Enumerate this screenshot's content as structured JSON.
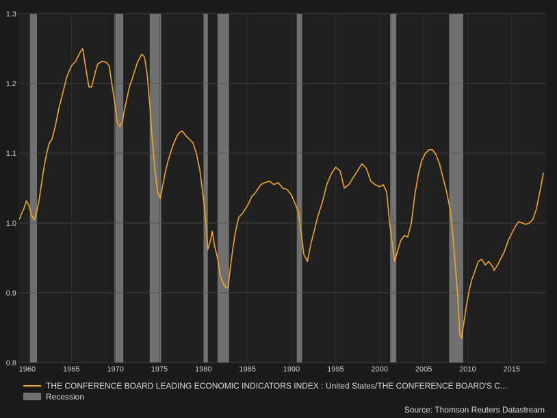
{
  "chart_data": {
    "type": "line",
    "title": "",
    "xlabel": "",
    "ylabel": "",
    "xlim": [
      1959.0,
      2018.9
    ],
    "ylim": [
      0.8,
      1.3
    ],
    "x_ticks": [
      1960,
      1965,
      1970,
      1975,
      1980,
      1985,
      1990,
      1995,
      2000,
      2005,
      2010,
      2015
    ],
    "x_tick_labels": [
      "1960",
      "1965",
      "1970",
      "1975",
      "1980",
      "1985",
      "1990",
      "1995",
      "2000",
      "2005",
      "2010",
      "2015"
    ],
    "y_ticks": [
      0.8,
      0.9,
      1.0,
      1.1,
      1.2,
      1.3
    ],
    "y_tick_labels": [
      "0.8",
      "0.9",
      "1.0",
      "1.1",
      "1.2",
      "1.3"
    ],
    "grid": true,
    "legend_position": "bottom-left",
    "series": [
      {
        "name": "THE CONFERENCE BOARD LEADING ECONOMIC INDICATORS INDEX : United States/THE CONFERENCE BOARD'S C...",
        "color": "#f5a623",
        "x": [
          1959.1,
          1959.3,
          1959.6,
          1959.9,
          1960.2,
          1960.5,
          1960.8,
          1961.0,
          1961.3,
          1961.6,
          1961.9,
          1962.2,
          1962.5,
          1962.8,
          1963.2,
          1963.6,
          1964.0,
          1964.5,
          1965.0,
          1965.5,
          1966.0,
          1966.3,
          1966.6,
          1967.0,
          1967.3,
          1967.7,
          1968.0,
          1968.5,
          1969.0,
          1969.3,
          1969.6,
          1969.9,
          1970.2,
          1970.5,
          1970.8,
          1971.0,
          1971.3,
          1971.6,
          1972.0,
          1972.5,
          1973.0,
          1973.3,
          1973.6,
          1973.9,
          1974.2,
          1974.5,
          1974.8,
          1975.1,
          1975.4,
          1975.7,
          1976.0,
          1976.5,
          1977.0,
          1977.3,
          1977.6,
          1978.0,
          1978.4,
          1978.8,
          1979.2,
          1979.6,
          1980.0,
          1980.3,
          1980.5,
          1980.8,
          1981.0,
          1981.3,
          1981.6,
          1981.9,
          1982.2,
          1982.5,
          1982.8,
          1983.0,
          1983.3,
          1983.6,
          1984.0,
          1984.5,
          1985.0,
          1985.5,
          1986.0,
          1986.5,
          1987.0,
          1987.5,
          1988.0,
          1988.5,
          1989.0,
          1989.5,
          1990.0,
          1990.4,
          1990.8,
          1991.1,
          1991.4,
          1991.8,
          1992.2,
          1992.6,
          1993.0,
          1993.5,
          1994.0,
          1994.5,
          1995.0,
          1995.5,
          1996.0,
          1996.5,
          1997.0,
          1997.5,
          1998.0,
          1998.5,
          1999.0,
          1999.5,
          2000.0,
          2000.4,
          2000.8,
          2001.1,
          2001.4,
          2001.7,
          2002.0,
          2002.4,
          2002.8,
          2003.2,
          2003.6,
          2004.0,
          2004.4,
          2004.8,
          2005.2,
          2005.6,
          2006.0,
          2006.4,
          2006.8,
          2007.2,
          2007.6,
          2008.0,
          2008.3,
          2008.6,
          2008.9,
          2009.1,
          2009.3,
          2009.6,
          2009.9,
          2010.2,
          2010.5,
          2010.8,
          2011.2,
          2011.6,
          2012.0,
          2012.4,
          2012.8,
          2013.0,
          2013.4,
          2013.8,
          2014.2,
          2014.6,
          2015.0,
          2015.4,
          2015.8,
          2016.2,
          2016.6,
          2017.0,
          2017.4,
          2017.8,
          2018.2,
          2018.6
        ],
        "y": [
          1.005,
          1.012,
          1.02,
          1.032,
          1.025,
          1.01,
          1.005,
          1.012,
          1.03,
          1.055,
          1.08,
          1.1,
          1.115,
          1.12,
          1.14,
          1.165,
          1.185,
          1.21,
          1.225,
          1.232,
          1.245,
          1.25,
          1.225,
          1.195,
          1.195,
          1.215,
          1.228,
          1.232,
          1.23,
          1.225,
          1.2,
          1.175,
          1.145,
          1.138,
          1.145,
          1.16,
          1.178,
          1.195,
          1.21,
          1.23,
          1.242,
          1.238,
          1.215,
          1.17,
          1.12,
          1.075,
          1.045,
          1.035,
          1.055,
          1.075,
          1.09,
          1.11,
          1.125,
          1.13,
          1.132,
          1.125,
          1.12,
          1.115,
          1.1,
          1.075,
          1.035,
          0.998,
          0.962,
          0.975,
          0.988,
          0.965,
          0.95,
          0.925,
          0.915,
          0.908,
          0.907,
          0.93,
          0.96,
          0.985,
          1.008,
          1.015,
          1.025,
          1.038,
          1.045,
          1.055,
          1.058,
          1.06,
          1.055,
          1.058,
          1.05,
          1.048,
          1.04,
          1.028,
          1.015,
          0.985,
          0.955,
          0.945,
          0.97,
          0.99,
          1.01,
          1.03,
          1.055,
          1.07,
          1.08,
          1.075,
          1.05,
          1.055,
          1.065,
          1.075,
          1.085,
          1.078,
          1.06,
          1.055,
          1.052,
          1.055,
          1.045,
          1.005,
          0.975,
          0.945,
          0.958,
          0.975,
          0.982,
          0.98,
          1.0,
          1.04,
          1.07,
          1.09,
          1.1,
          1.105,
          1.105,
          1.098,
          1.085,
          1.065,
          1.045,
          1.02,
          0.985,
          0.94,
          0.89,
          0.84,
          0.835,
          0.86,
          0.885,
          0.905,
          0.92,
          0.93,
          0.945,
          0.948,
          0.94,
          0.945,
          0.938,
          0.932,
          0.94,
          0.95,
          0.96,
          0.975,
          0.985,
          0.995,
          1.002,
          1.0,
          0.998,
          1.0,
          1.005,
          1.02,
          1.045,
          1.072
        ]
      }
    ],
    "recessions": [
      {
        "start": 1960.3,
        "end": 1961.1
      },
      {
        "start": 1969.9,
        "end": 1970.9
      },
      {
        "start": 1973.9,
        "end": 1975.2
      },
      {
        "start": 1980.0,
        "end": 1980.5
      },
      {
        "start": 1981.6,
        "end": 1982.9
      },
      {
        "start": 1990.6,
        "end": 1991.2
      },
      {
        "start": 2001.2,
        "end": 2001.9
      },
      {
        "start": 2007.9,
        "end": 2009.5
      }
    ],
    "recession_color": "#707070",
    "recession_legend": "Recession",
    "source": "Source: Thomson Reuters Datastream"
  }
}
